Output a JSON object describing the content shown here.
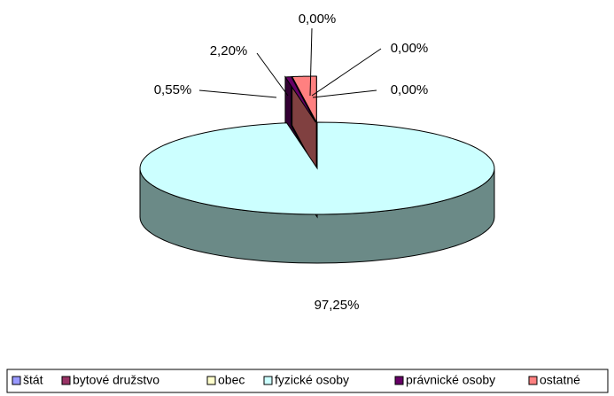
{
  "chart_data": {
    "type": "pie",
    "categories": [
      "štát",
      "bytové družstvo",
      "obec",
      "fyzické osoby",
      "právnické osoby",
      "ostatné"
    ],
    "values": [
      0,
      0,
      0,
      97.25,
      0.55,
      2.2
    ],
    "value_labels": [
      "0,00%",
      "0,00%",
      "0,00%",
      "97,25%",
      "0,55%",
      "2,20%"
    ],
    "colors": [
      "#9999ff",
      "#993366",
      "#ffffcc",
      "#ccffff",
      "#660066",
      "#ff8080"
    ],
    "legend": "bottom"
  }
}
